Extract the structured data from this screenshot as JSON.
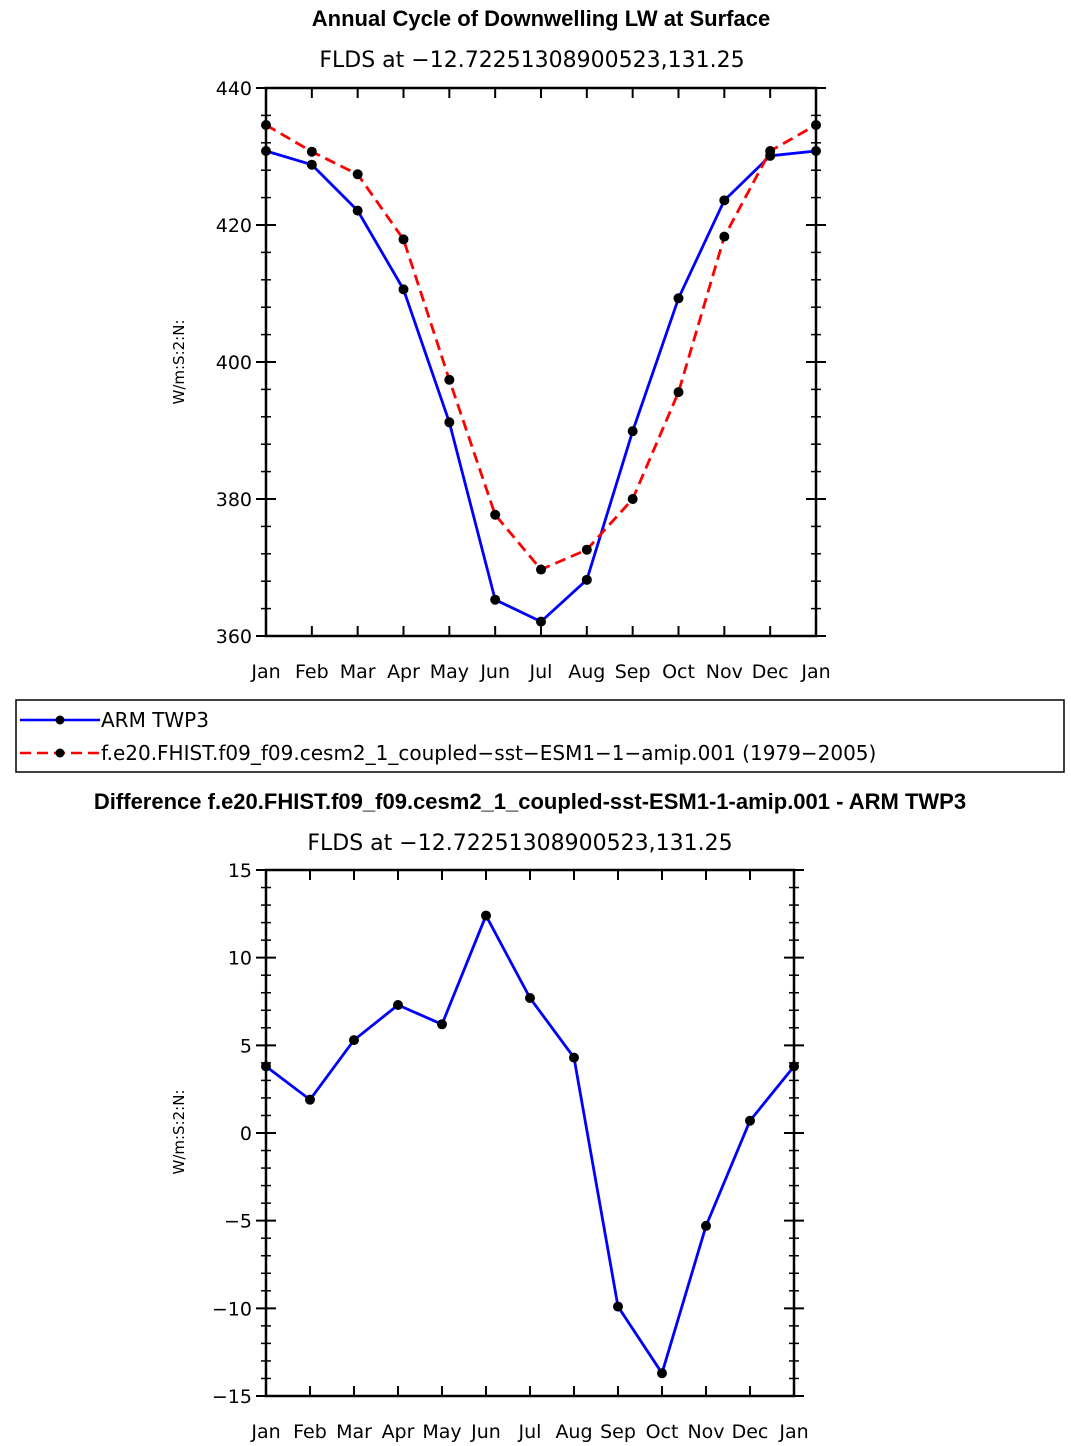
{
  "chart_data": [
    {
      "type": "line",
      "title": "Annual Cycle of Downwelling LW at Surface",
      "subtitle": "FLDS at −12.72251308900523,131.25",
      "xlabel": "",
      "ylabel": "W/m:S:2:N:",
      "categories": [
        "Jan",
        "Feb",
        "Mar",
        "Apr",
        "May",
        "Jun",
        "Jul",
        "Aug",
        "Sep",
        "Oct",
        "Nov",
        "Dec",
        "Jan"
      ],
      "ylim": [
        360,
        440
      ],
      "yticks": [
        "360",
        "380",
        "400",
        "420",
        "440"
      ],
      "series": [
        {
          "name": "ARM TWP3",
          "color": "#0000ff",
          "dash": "solid",
          "values": [
            430.8,
            428.8,
            422.1,
            410.6,
            391.2,
            365.3,
            362.1,
            368.2,
            389.9,
            409.3,
            423.6,
            430.1,
            430.8
          ]
        },
        {
          "name": "f.e20.FHIST.f09_f09.cesm2_1_coupled−sst−ESM1−1−amip.001 (1979−2005)",
          "color": "#ff0000",
          "dash": "dashed",
          "values": [
            434.6,
            430.7,
            427.4,
            417.9,
            397.4,
            377.7,
            369.7,
            372.6,
            380.0,
            395.6,
            418.3,
            430.8,
            434.6
          ]
        }
      ],
      "legend": {
        "placement": "below",
        "items": [
          {
            "label": "ARM TWP3",
            "color": "#0000ff",
            "dash": "solid"
          },
          {
            "label": "f.e20.FHIST.f09_f09.cesm2_1_coupled−sst−ESM1−1−amip.001 (1979−2005)",
            "color": "#ff0000",
            "dash": "dashed"
          }
        ]
      }
    },
    {
      "type": "line",
      "title": "Difference f.e20.FHIST.f09_f09.cesm2_1_coupled-sst-ESM1-1-amip.001 - ARM TWP3",
      "subtitle": "FLDS at −12.72251308900523,131.25",
      "xlabel": "",
      "ylabel": "W/m:S:2:N:",
      "categories": [
        "Jan",
        "Feb",
        "Mar",
        "Apr",
        "May",
        "Jun",
        "Jul",
        "Aug",
        "Sep",
        "Oct",
        "Nov",
        "Dec",
        "Jan"
      ],
      "ylim": [
        -15,
        15
      ],
      "yticks": [
        "−15",
        "−10",
        "−5",
        "0",
        "5",
        "10",
        "15"
      ],
      "series": [
        {
          "name": "Difference",
          "color": "#0000ff",
          "dash": "solid",
          "values": [
            3.8,
            1.9,
            5.3,
            7.3,
            6.2,
            12.4,
            7.7,
            4.3,
            -9.9,
            -13.7,
            -5.3,
            0.7,
            3.8
          ]
        }
      ]
    }
  ]
}
